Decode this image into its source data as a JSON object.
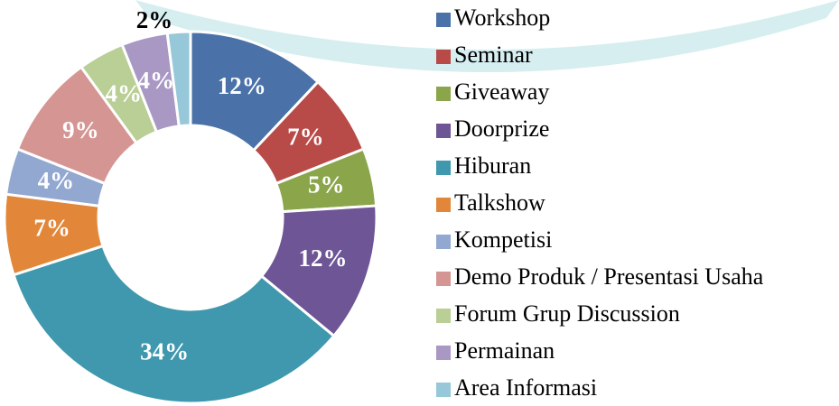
{
  "chart_data": {
    "type": "donut",
    "categories": [
      "Workshop",
      "Seminar",
      "Giveaway",
      "Doorprize",
      "Hiburan",
      "Talkshow",
      "Kompetisi",
      "Demo Produk / Presentasi Usaha",
      "Forum Grup Discussion",
      "Permainan",
      "Area Informasi"
    ],
    "values": [
      12,
      7,
      5,
      12,
      34,
      7,
      4,
      9,
      4,
      4,
      2
    ],
    "value_labels": [
      "12%",
      "7%",
      "5%",
      "12%",
      "34%",
      "7%",
      "4%",
      "9%",
      "4%",
      "4%",
      "2%"
    ],
    "colors": [
      "#4a72a8",
      "#b84a47",
      "#8aa54a",
      "#6e5596",
      "#3f98ad",
      "#e2873a",
      "#92a8d1",
      "#d59593",
      "#b9cf96",
      "#a898c3",
      "#96c8d9"
    ],
    "legend": "right"
  }
}
